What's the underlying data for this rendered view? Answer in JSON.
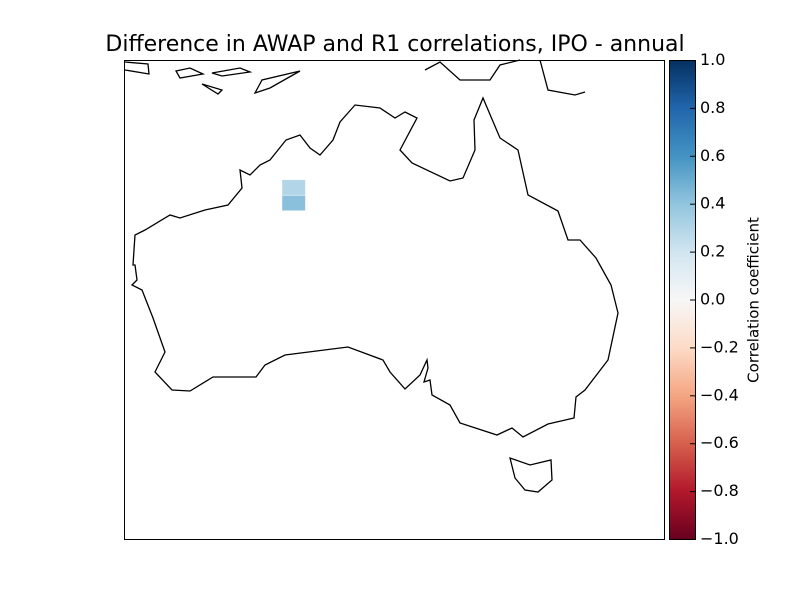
{
  "chart_data": {
    "type": "map",
    "title": "Difference in AWAP and R1 correlations, IPO - annual",
    "xlim": [
      112,
      157
    ],
    "ylim": [
      -47.5,
      -7.5
    ],
    "cells": [
      {
        "lon": 126.1,
        "lat": -18.1,
        "value": 0.3
      },
      {
        "lon": 126.1,
        "lat": -19.4,
        "value": 0.42
      }
    ],
    "colorbar": {
      "label": "Correlation coefficient",
      "lim": [
        -1,
        1
      ],
      "ticks": [
        {
          "value": 1,
          "label": "1.0"
        },
        0.8,
        0.6,
        0.4,
        0.2,
        {
          "value": 0,
          "label": "0.0"
        },
        {
          "value": -0.2,
          "label": "−0.2"
        },
        {
          "value": -0.4,
          "label": "−0.4"
        },
        {
          "value": -0.6,
          "label": "−0.6"
        },
        {
          "value": -0.8,
          "label": "−0.8"
        },
        {
          "value": -1,
          "label": "−1.0"
        }
      ]
    }
  }
}
